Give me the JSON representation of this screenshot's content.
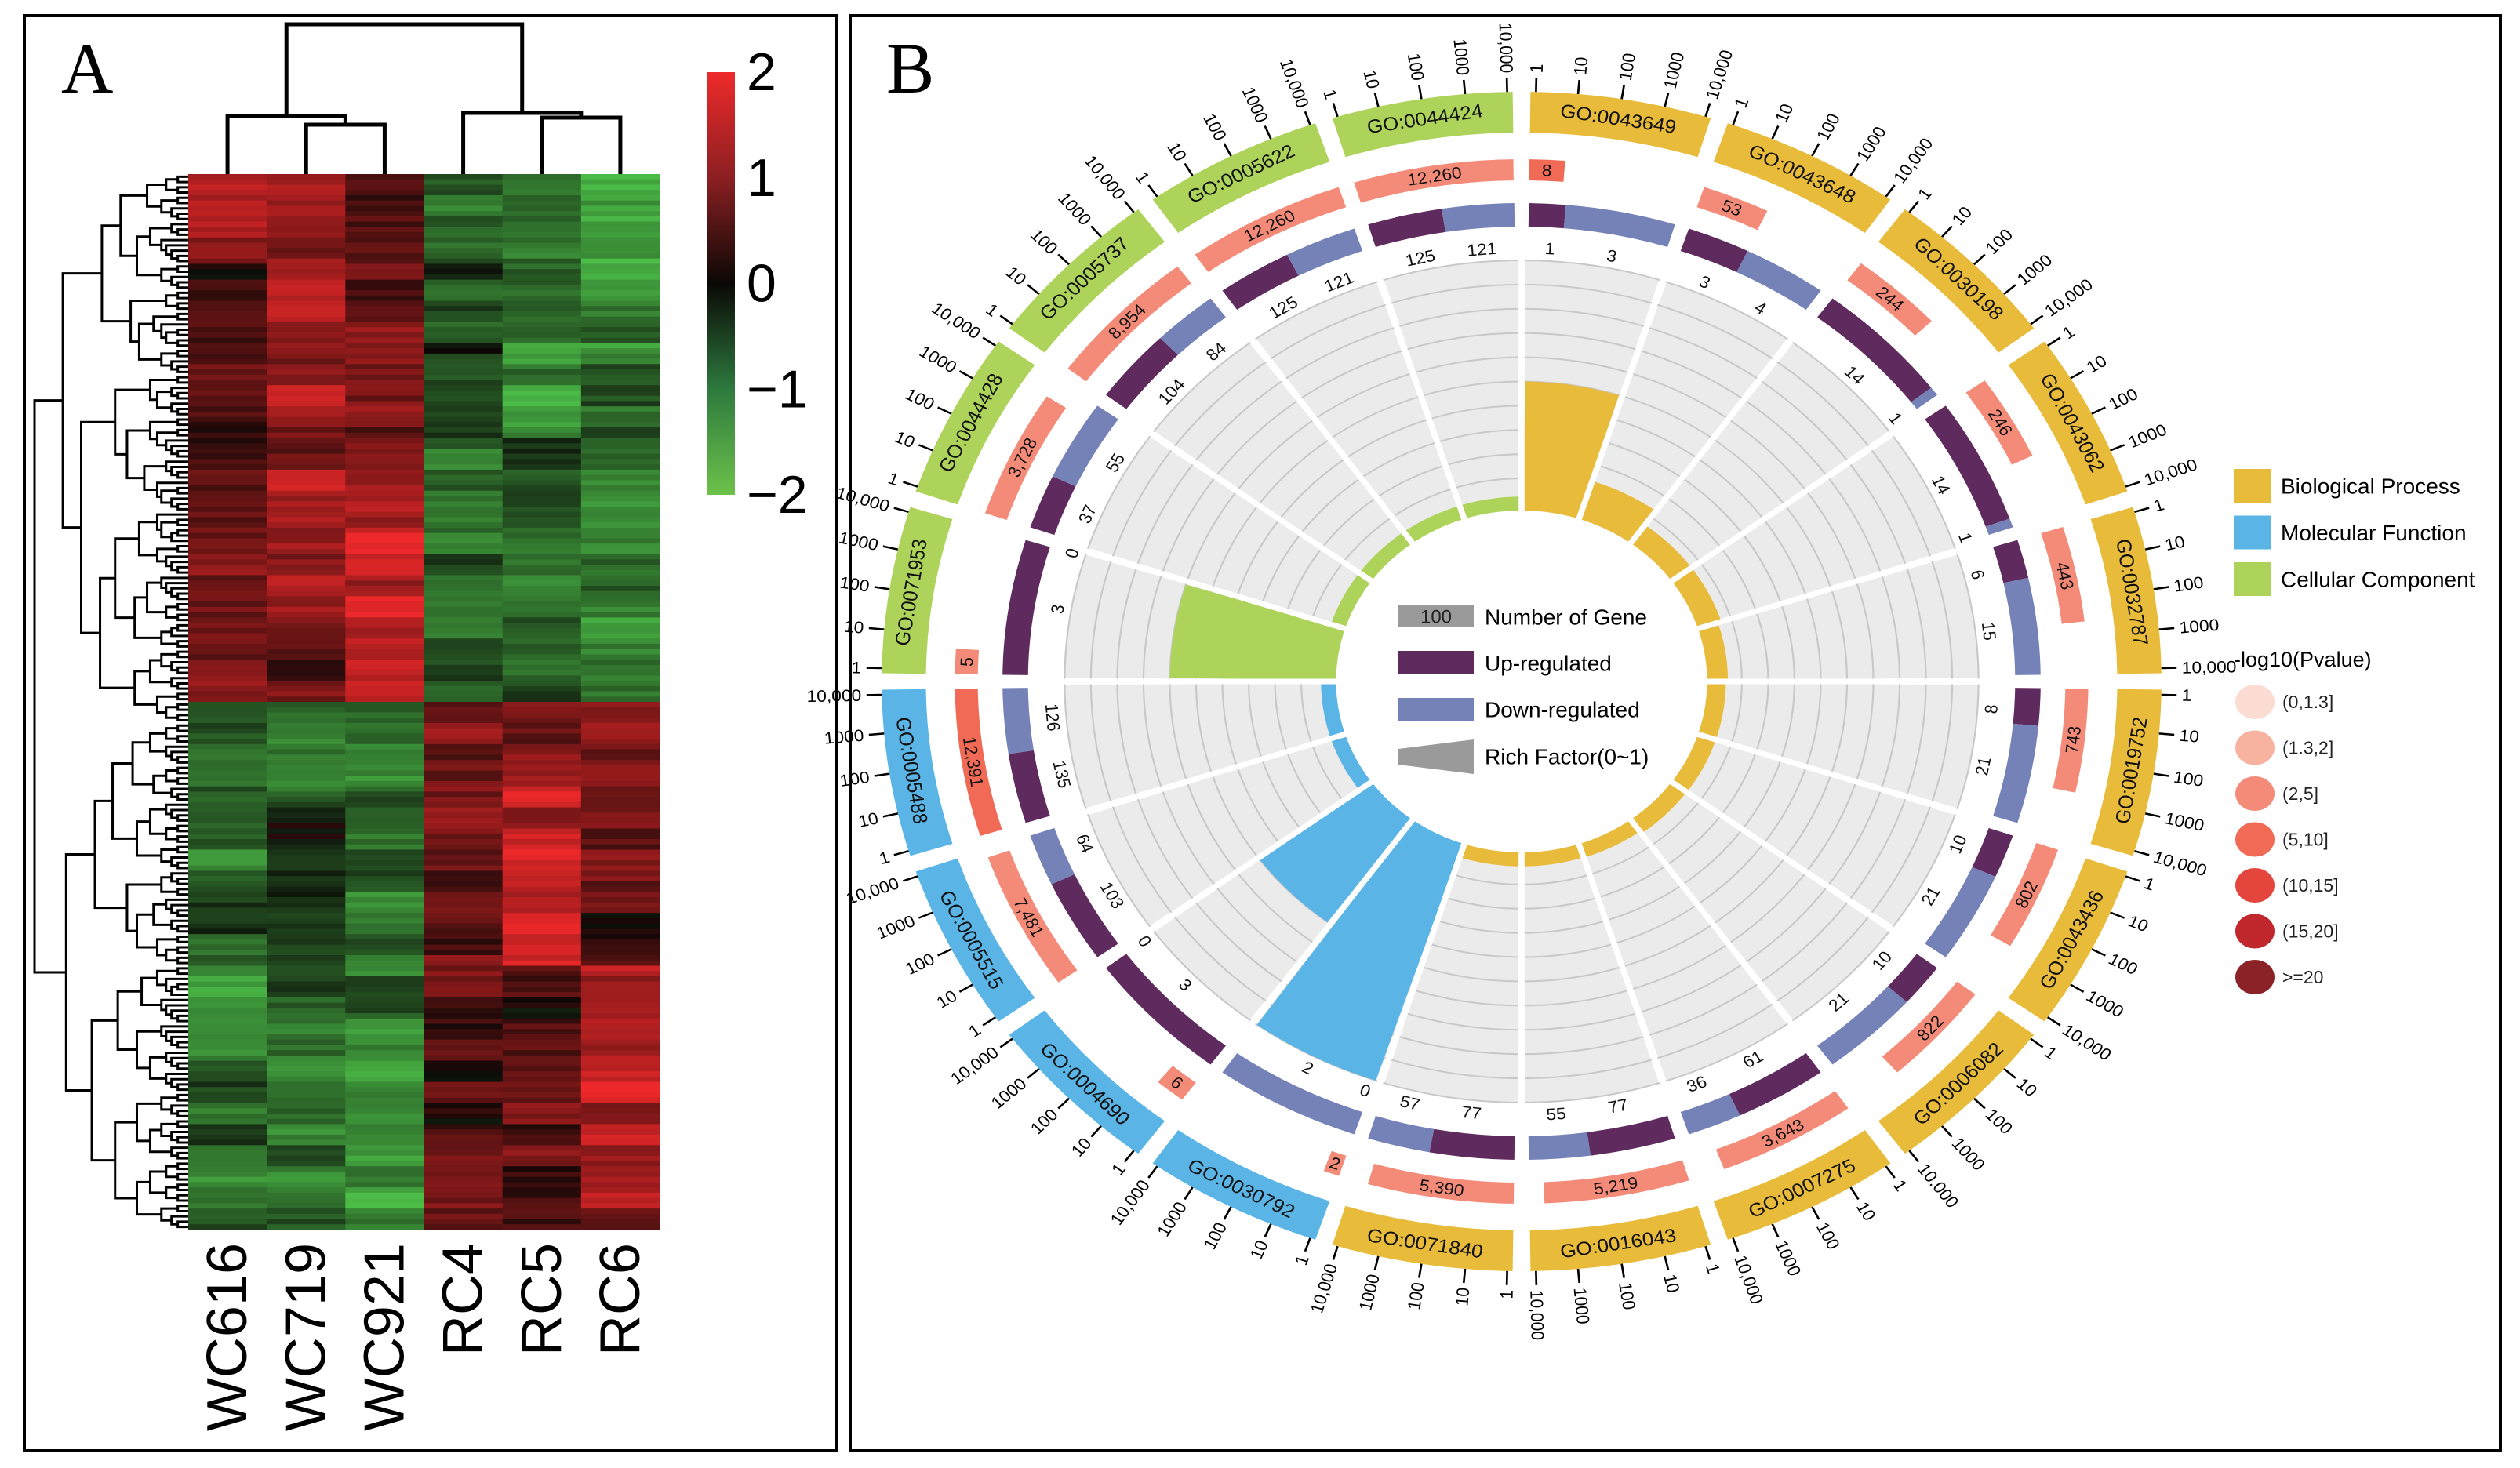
{
  "panel_labels": {
    "a": "A",
    "b": "B"
  },
  "chart_data": [
    {
      "type": "heatmap",
      "columns": [
        "WC616",
        "WC719",
        "WC921",
        "RC4",
        "RC5",
        "RC6"
      ],
      "column_dendrogram": "((WC616,(WC719,WC921)),(RC4,(RC5,RC6)))",
      "colorbar": {
        "range": [
          -2,
          2
        ],
        "ticks": [
          {
            "value": 2,
            "label": "2"
          },
          {
            "value": 1,
            "label": "1"
          },
          {
            "value": 0,
            "label": "0"
          },
          {
            "value": -1,
            "label": "−1"
          },
          {
            "value": -2,
            "label": "−2"
          }
        ],
        "low_color": "#4cbb47",
        "mid_color": "#0a0805",
        "high_color": "#ee2a2a"
      },
      "row_block_means": [
        [
          1.2,
          1.0,
          0.6,
          -0.8,
          -1.0,
          -1.4
        ],
        [
          0.4,
          1.3,
          0.8,
          -0.4,
          -1.2,
          -1.2
        ],
        [
          0.5,
          1.2,
          0.7,
          -0.8,
          -1.3,
          -1.0
        ],
        [
          0.6,
          1.1,
          1.2,
          -1.0,
          -0.5,
          -1.2
        ],
        [
          0.7,
          1.0,
          1.6,
          -0.9,
          -1.0,
          -1.1
        ],
        [
          1.0,
          0.6,
          1.2,
          -0.8,
          -0.9,
          -1.2
        ],
        [
          -0.8,
          -1.0,
          -1.1,
          1.0,
          1.0,
          0.8
        ],
        [
          -1.0,
          -0.3,
          -1.0,
          0.6,
          1.5,
          0.6
        ],
        [
          -0.8,
          -0.5,
          -1.0,
          0.5,
          1.6,
          0.4
        ],
        [
          -1.4,
          -0.8,
          -1.0,
          0.5,
          0.4,
          1.2
        ],
        [
          -0.9,
          -1.1,
          -1.3,
          0.4,
          0.6,
          1.5
        ],
        [
          -1.0,
          -0.9,
          -1.4,
          0.8,
          0.7,
          1.1
        ]
      ]
    },
    {
      "type": "circular-go-enrichment",
      "categories": [
        {
          "key": "BP",
          "name": "Biological Process",
          "color": "#e9bb3b"
        },
        {
          "key": "MF",
          "name": "Molecular Function",
          "color": "#5ab5e6"
        },
        {
          "key": "CC",
          "name": "Cellular Component",
          "color": "#aed35a"
        }
      ],
      "axis_ticks": [
        "1",
        "10",
        "100",
        "1000",
        "10,000"
      ],
      "up_color": "#5f2a5e",
      "down_color": "#7482b8",
      "terms": [
        {
          "id": "GO:0043649",
          "cat": "BP",
          "count": 8,
          "up": 1,
          "down": 3,
          "rich_factor": 0.5,
          "pvalue_bin": 3
        },
        {
          "id": "GO:0043648",
          "cat": "BP",
          "count": 53,
          "up": 3,
          "down": 4,
          "rich_factor": 0.132,
          "pvalue_bin": 2
        },
        {
          "id": "GO:0030198",
          "cat": "BP",
          "count": 244,
          "up": 14,
          "down": 1,
          "rich_factor": 0.061,
          "pvalue_bin": 2
        },
        {
          "id": "GO:0043062",
          "cat": "BP",
          "count": 246,
          "up": 14,
          "down": 1,
          "rich_factor": 0.061,
          "pvalue_bin": 2
        },
        {
          "id": "GO:0032787",
          "cat": "BP",
          "count": 443,
          "up": 6,
          "down": 15,
          "rich_factor": 0.047,
          "pvalue_bin": 2
        },
        {
          "id": "GO:0019752",
          "cat": "BP",
          "count": 743,
          "up": 8,
          "down": 21,
          "rich_factor": 0.039,
          "pvalue_bin": 2
        },
        {
          "id": "GO:0043436",
          "cat": "BP",
          "count": 802,
          "up": 10,
          "down": 21,
          "rich_factor": 0.039,
          "pvalue_bin": 2
        },
        {
          "id": "GO:0006082",
          "cat": "BP",
          "count": 822,
          "up": 10,
          "down": 21,
          "rich_factor": 0.038,
          "pvalue_bin": 2
        },
        {
          "id": "GO:0007275",
          "cat": "BP",
          "count": 3643,
          "up": 61,
          "down": 36,
          "rich_factor": 0.027,
          "pvalue_bin": 2
        },
        {
          "id": "GO:0016043",
          "cat": "BP",
          "count": 5219,
          "up": 77,
          "down": 55,
          "rich_factor": 0.025,
          "pvalue_bin": 2
        },
        {
          "id": "GO:0071840",
          "cat": "BP",
          "count": 5390,
          "up": 77,
          "down": 57,
          "rich_factor": 0.025,
          "pvalue_bin": 2
        },
        {
          "id": "GO:0030792",
          "cat": "MF",
          "count": 2,
          "up": 0,
          "down": 2,
          "rich_factor": 1.0,
          "pvalue_bin": 2
        },
        {
          "id": "GO:0004690",
          "cat": "MF",
          "count": 6,
          "up": 3,
          "down": 0,
          "rich_factor": 0.5,
          "pvalue_bin": 2
        },
        {
          "id": "GO:0005515",
          "cat": "MF",
          "count": 7481,
          "up": 103,
          "down": 64,
          "rich_factor": 0.022,
          "pvalue_bin": 2
        },
        {
          "id": "GO:0005488",
          "cat": "MF",
          "count": 12391,
          "up": 135,
          "down": 126,
          "rich_factor": 0.021,
          "pvalue_bin": 3
        },
        {
          "id": "GO:0071953",
          "cat": "CC",
          "count": 5,
          "up": 3,
          "down": 0,
          "rich_factor": 0.6,
          "pvalue_bin": 2
        },
        {
          "id": "GO:0044428",
          "cat": "CC",
          "count": 3728,
          "up": 37,
          "down": 55,
          "rich_factor": 0.025,
          "pvalue_bin": 2
        },
        {
          "id": "GO:0005737",
          "cat": "CC",
          "count": 8954,
          "up": 104,
          "down": 84,
          "rich_factor": 0.021,
          "pvalue_bin": 2
        },
        {
          "id": "GO:0005622",
          "cat": "CC",
          "count": 12260,
          "up": 125,
          "down": 121,
          "rich_factor": 0.02,
          "pvalue_bin": 2
        },
        {
          "id": "GO:0044424",
          "cat": "CC",
          "count": 12260,
          "up": 125,
          "down": 121,
          "rich_factor": 0.02,
          "pvalue_bin": 2
        }
      ],
      "center_legend": {
        "number_box": "100",
        "number_label": "Number of Gene",
        "up_label": "Up-regulated",
        "down_label": "Down-regulated",
        "rich_label": "Rich Factor(0~1)"
      },
      "pvalue_legend": {
        "title": "-log10(Pvalue)",
        "bins": [
          {
            "label": "(0,1.3]",
            "color": "#fbdcd2"
          },
          {
            "label": "(1.3,2]",
            "color": "#f8b3a0"
          },
          {
            "label": "(2,5]",
            "color": "#f48b78"
          },
          {
            "label": "(5,10]",
            "color": "#f06a55"
          },
          {
            "label": "(10,15]",
            "color": "#e4463d"
          },
          {
            "label": "(15,20]",
            "color": "#c0282e"
          },
          {
            "label": ">=20",
            "color": "#8b2228"
          }
        ]
      }
    }
  ]
}
